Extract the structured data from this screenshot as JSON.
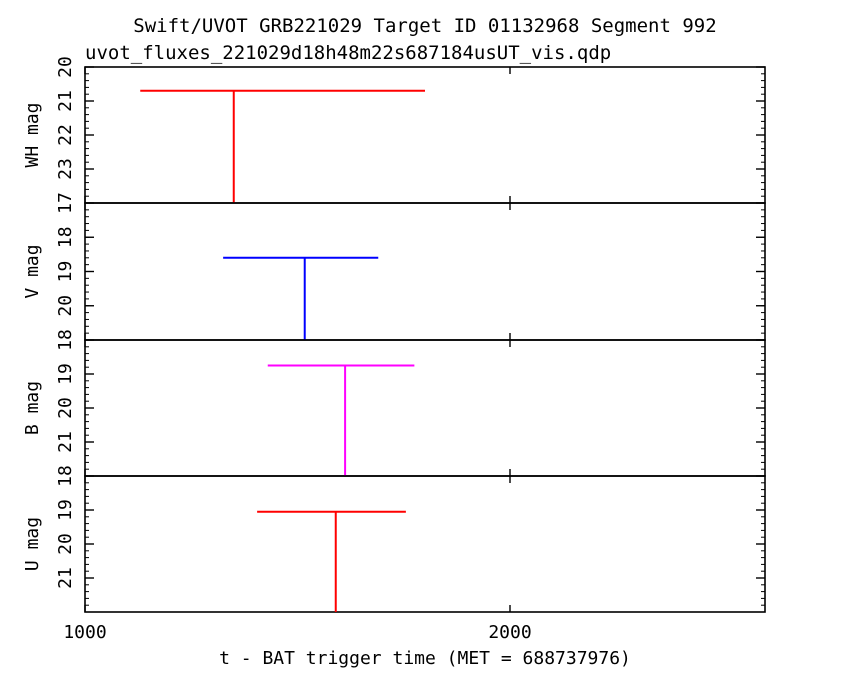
{
  "chart_data": {
    "type": "scatter",
    "title": "Swift/UVOT GRB221029 Target ID 01132968 Segment 992",
    "subtitle": "uvot_fluxes_221029d18h48m22s687184usUT_vis.qdp",
    "xlabel": "t - BAT trigger time (MET = 688737976)",
    "xlim": [
      1000,
      2600
    ],
    "x_ticks": [
      1000,
      2000
    ],
    "x_tick_labels": [
      "1000",
      "2000"
    ],
    "grid": false,
    "panels": [
      {
        "ylabel": "WH mag",
        "ylim": [
          20,
          24
        ],
        "y_ticks": [
          20,
          21,
          22,
          23
        ],
        "y_tick_labels": [
          "20",
          "21",
          "22",
          "23"
        ],
        "color": "#ff0000",
        "points": [
          {
            "x": 1350,
            "x_err_low": 1130,
            "x_err_high": 1800,
            "y": 20.7,
            "upper_limit": true
          }
        ]
      },
      {
        "ylabel": "V mag",
        "ylim": [
          17,
          21
        ],
        "y_ticks": [
          17,
          18,
          19,
          20
        ],
        "y_tick_labels": [
          "17",
          "18",
          "19",
          "20"
        ],
        "color": "#0000ff",
        "points": [
          {
            "x": 1517,
            "x_err_low": 1325,
            "x_err_high": 1690,
            "y": 18.6,
            "upper_limit": true
          }
        ]
      },
      {
        "ylabel": "B mag",
        "ylim": [
          18,
          22
        ],
        "y_ticks": [
          18,
          19,
          20,
          21
        ],
        "y_tick_labels": [
          "18",
          "19",
          "20",
          "21"
        ],
        "color": "#ff00ff",
        "points": [
          {
            "x": 1612,
            "x_err_low": 1430,
            "x_err_high": 1775,
            "y": 18.75,
            "upper_limit": true
          }
        ]
      },
      {
        "ylabel": "U mag",
        "ylim": [
          18,
          22
        ],
        "y_ticks": [
          18,
          19,
          20,
          21
        ],
        "y_tick_labels": [
          "18",
          "19",
          "20",
          "21"
        ],
        "color": "#ff0000",
        "points": [
          {
            "x": 1590,
            "x_err_low": 1405,
            "x_err_high": 1755,
            "y": 19.05,
            "upper_limit": true
          }
        ]
      }
    ]
  }
}
